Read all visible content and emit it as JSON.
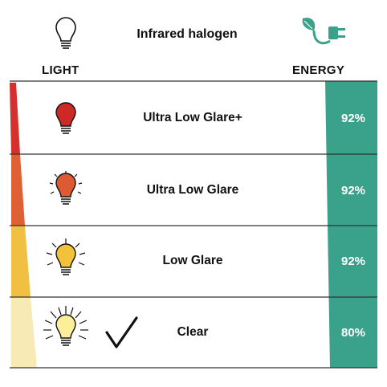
{
  "header": {
    "title": "Infrared halogen",
    "light_label": "LIGHT",
    "energy_label": "ENERGY"
  },
  "colors": {
    "energy_teal": "#3aa28a",
    "glare_red": "#d4302e",
    "glare_orange": "#e06035",
    "glare_yellow": "#f1c043",
    "glare_pale": "#f8eab4"
  },
  "rows": [
    {
      "label": "Ultra Low Glare+",
      "efficiency": "92%",
      "bulb_color": "#cd2a26",
      "rays": "none",
      "selected": false
    },
    {
      "label": "Ultra Low Glare",
      "efficiency": "92%",
      "bulb_color": "#de5a33",
      "rays": "short",
      "selected": false
    },
    {
      "label": "Low Glare",
      "efficiency": "92%",
      "bulb_color": "#f2c23a",
      "rays": "medium",
      "selected": false
    },
    {
      "label": "Clear",
      "efficiency": "80%",
      "bulb_color": "#fbef9a",
      "rays": "long",
      "selected": true
    }
  ]
}
